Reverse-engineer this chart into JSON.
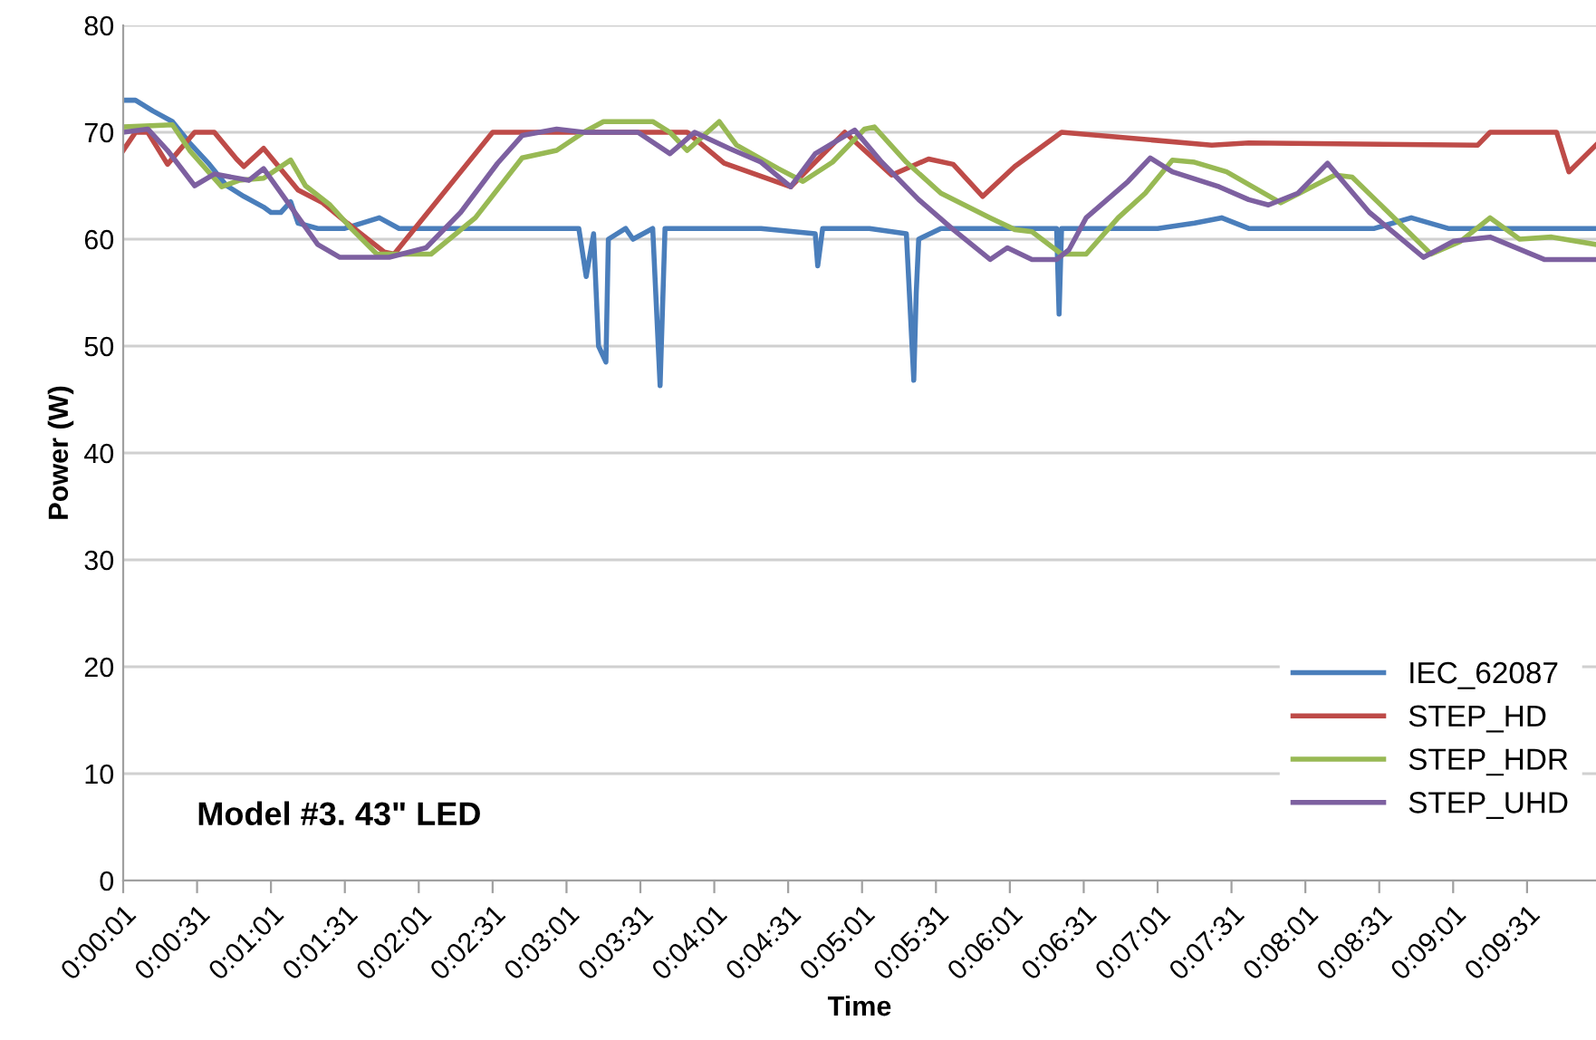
{
  "chart_data": {
    "type": "line",
    "xlabel": "Time",
    "ylabel": "Power (W)",
    "annotations": [
      "Model #3. 43\" LED"
    ],
    "xlim": [
      1,
      599
    ],
    "ylim": [
      0,
      80
    ],
    "yticks": [
      0,
      10,
      20,
      30,
      40,
      50,
      60,
      70,
      80
    ],
    "xticks": [
      {
        "value": 1,
        "label": "0:00:01"
      },
      {
        "value": 31,
        "label": "0:00:31"
      },
      {
        "value": 61,
        "label": "0:01:01"
      },
      {
        "value": 91,
        "label": "0:01:31"
      },
      {
        "value": 121,
        "label": "0:02:01"
      },
      {
        "value": 151,
        "label": "0:02:31"
      },
      {
        "value": 181,
        "label": "0:03:01"
      },
      {
        "value": 211,
        "label": "0:03:31"
      },
      {
        "value": 241,
        "label": "0:04:01"
      },
      {
        "value": 271,
        "label": "0:04:31"
      },
      {
        "value": 301,
        "label": "0:05:01"
      },
      {
        "value": 331,
        "label": "0:05:31"
      },
      {
        "value": 361,
        "label": "0:06:01"
      },
      {
        "value": 391,
        "label": "0:06:31"
      },
      {
        "value": 421,
        "label": "0:07:01"
      },
      {
        "value": 451,
        "label": "0:07:31"
      },
      {
        "value": 481,
        "label": "0:08:01"
      },
      {
        "value": 511,
        "label": "0:08:31"
      },
      {
        "value": 541,
        "label": "0:09:01"
      },
      {
        "value": 571,
        "label": "0:09:31"
      }
    ],
    "grid": "y",
    "legend": "bottom right",
    "marker": "none",
    "line_style": "solid",
    "series": [
      {
        "name": "IEC_62087",
        "color": "#4a7ebb",
        "x": [
          1,
          6,
          13,
          21,
          28,
          36,
          43,
          50,
          58,
          61,
          65,
          69,
          72,
          80,
          91,
          105,
          113,
          124,
          142,
          172,
          186,
          189,
          192,
          194,
          197,
          198,
          205,
          208,
          216,
          219,
          221,
          245,
          260,
          282,
          283,
          285,
          304,
          319,
          322,
          323,
          324,
          333,
          363,
          380,
          381,
          382,
          392,
          421,
          436,
          447,
          458,
          480,
          509,
          524,
          539,
          554,
          568,
          583,
          599
        ],
        "values": [
          73,
          73,
          72,
          71,
          69,
          67,
          65,
          64,
          63,
          62.5,
          62.5,
          63.5,
          61.5,
          61,
          61,
          62,
          61,
          61,
          61,
          61,
          61,
          56.5,
          60.5,
          50,
          48.5,
          60,
          61,
          60,
          61,
          46.3,
          61,
          61,
          61,
          60.5,
          57.5,
          61,
          61,
          60.5,
          46.8,
          55,
          60,
          61,
          61,
          61,
          53,
          61,
          61,
          61,
          61.5,
          62,
          61,
          61,
          61,
          62,
          61,
          61,
          61,
          61,
          61
        ]
      },
      {
        "name": "STEP_HD",
        "color": "#be4b48",
        "x": [
          1,
          6,
          11,
          19,
          30,
          38,
          47,
          50,
          58,
          72,
          82,
          92,
          107,
          111,
          151,
          172,
          188,
          230,
          245,
          272,
          294,
          313,
          328,
          338,
          350,
          363,
          382,
          443,
          458,
          551,
          556,
          583,
          588,
          599
        ],
        "values": [
          68.3,
          70,
          70,
          67,
          70,
          70,
          67.5,
          66.8,
          68.5,
          64.6,
          63.4,
          61.5,
          58.8,
          58.6,
          70,
          70,
          70,
          70,
          67.1,
          64.9,
          70,
          66,
          67.5,
          67,
          64,
          66.8,
          70,
          68.8,
          69,
          68.8,
          70,
          70,
          66.3,
          68.8
        ]
      },
      {
        "name": "STEP_HDR",
        "color": "#98b954",
        "x": [
          1,
          21,
          28,
          41,
          48,
          58,
          69,
          75,
          85,
          94,
          104,
          126,
          144,
          163,
          177,
          188,
          196,
          216,
          223,
          230,
          243,
          250,
          267,
          277,
          289,
          302,
          306,
          319,
          333,
          353,
          363,
          370,
          382,
          392,
          405,
          416,
          427,
          436,
          449,
          471,
          493,
          500,
          517,
          532,
          544,
          556,
          568,
          581,
          599
        ],
        "values": [
          70.5,
          70.7,
          68.3,
          64.9,
          65.5,
          65.7,
          67.4,
          65,
          63.2,
          60.9,
          58.6,
          58.6,
          62,
          67.6,
          68.3,
          70,
          71,
          71,
          70,
          68.3,
          71,
          68.8,
          66.6,
          65.4,
          67.2,
          70.3,
          70.5,
          67.2,
          64.3,
          62,
          60.9,
          60.7,
          58.6,
          58.6,
          62,
          64.3,
          67.4,
          67.2,
          66.3,
          63.4,
          66,
          65.8,
          62,
          58.6,
          59.8,
          62,
          60,
          60.2,
          59.5
        ]
      },
      {
        "name": "STEP_UHD",
        "color": "#7d60a0",
        "x": [
          1,
          11,
          19,
          30,
          38,
          52,
          58,
          67,
          80,
          89,
          109,
          124,
          138,
          153,
          163,
          177,
          188,
          210,
          223,
          233,
          247,
          260,
          272,
          282,
          298,
          309,
          324,
          338,
          353,
          360,
          370,
          380,
          385,
          392,
          409,
          418,
          427,
          446,
          458,
          466,
          478,
          490,
          507,
          529,
          541,
          556,
          578,
          599
        ],
        "values": [
          70,
          70.3,
          68.3,
          65,
          66.1,
          65.5,
          66.6,
          63.7,
          59.5,
          58.3,
          58.3,
          59.2,
          62.5,
          67.1,
          69.7,
          70.3,
          70,
          70,
          68,
          70,
          68.5,
          67.2,
          64.9,
          68,
          70.2,
          67.2,
          63.7,
          60.9,
          58.1,
          59.2,
          58.1,
          58.1,
          59,
          62,
          65.4,
          67.6,
          66.3,
          64.9,
          63.7,
          63.2,
          64.3,
          67.1,
          62.5,
          58.3,
          59.8,
          60.2,
          58.1,
          58.1
        ]
      }
    ]
  }
}
